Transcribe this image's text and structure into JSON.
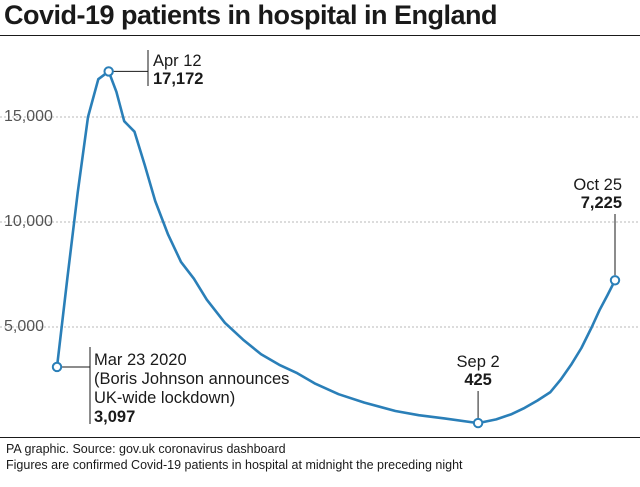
{
  "title": "Covid-19 patients in hospital in England",
  "footer": {
    "line1": "PA graphic. Source: gov.uk coronavirus dashboard",
    "line2": "Figures are confirmed Covid-19 patients in hospital at midnight the preceding night"
  },
  "colors": {
    "line": "#2a7fb8",
    "grid": "#b8b8b8",
    "text": "#1a1a1a"
  },
  "chart_data": {
    "type": "line",
    "title": "Covid-19 patients in hospital in England",
    "xlabel": "",
    "ylabel": "",
    "ylim": [
      0,
      18000
    ],
    "yticks": [
      5000,
      10000,
      15000
    ],
    "ytick_labels": [
      "5,000",
      "10,000",
      "15,000"
    ],
    "grid": true,
    "x": [
      "2020-03-23",
      "2020-03-27",
      "2020-03-31",
      "2020-04-04",
      "2020-04-08",
      "2020-04-12",
      "2020-04-15",
      "2020-04-18",
      "2020-04-22",
      "2020-04-26",
      "2020-04-30",
      "2020-05-05",
      "2020-05-10",
      "2020-05-15",
      "2020-05-20",
      "2020-05-27",
      "2020-06-03",
      "2020-06-10",
      "2020-06-17",
      "2020-06-24",
      "2020-07-01",
      "2020-07-10",
      "2020-07-20",
      "2020-08-01",
      "2020-08-10",
      "2020-08-20",
      "2020-09-02",
      "2020-09-09",
      "2020-09-15",
      "2020-09-20",
      "2020-09-25",
      "2020-09-30",
      "2020-10-04",
      "2020-10-08",
      "2020-10-12",
      "2020-10-16",
      "2020-10-19",
      "2020-10-22",
      "2020-10-25"
    ],
    "values": [
      3097,
      7300,
      11400,
      15000,
      16800,
      17172,
      16200,
      14800,
      14300,
      12700,
      11000,
      9400,
      8100,
      7300,
      6300,
      5200,
      4400,
      3700,
      3200,
      2800,
      2300,
      1800,
      1400,
      1000,
      800,
      650,
      425,
      600,
      850,
      1150,
      1500,
      1900,
      2500,
      3200,
      4000,
      5000,
      5800,
      6500,
      7225
    ],
    "series": [
      {
        "values": [
          3097,
          7300,
          11400,
          15000,
          16800,
          17172,
          16200,
          14800,
          14300,
          12700,
          11000,
          9400,
          8100,
          7300,
          6300,
          5200,
          4400,
          3700,
          3200,
          2800,
          2300,
          1800,
          1400,
          1000,
          800,
          650,
          425,
          600,
          850,
          1150,
          1500,
          1900,
          2500,
          3200,
          4000,
          5000,
          5800,
          6500,
          7225
        ]
      }
    ],
    "annotations": [
      {
        "x": "2020-03-23",
        "value": 3097,
        "lines": [
          "Mar 23 2020",
          "(Boris Johnson announces",
          "UK-wide lockdown)"
        ],
        "value_label": "3,097",
        "placement": "below-right"
      },
      {
        "x": "2020-04-12",
        "value": 17172,
        "lines": [
          "Apr 12"
        ],
        "value_label": "17,172",
        "placement": "above-right"
      },
      {
        "x": "2020-09-02",
        "value": 425,
        "lines": [
          "Sep 2"
        ],
        "value_label": "425",
        "placement": "above"
      },
      {
        "x": "2020-10-25",
        "value": 7225,
        "lines": [
          "Oct 25"
        ],
        "value_label": "7,225",
        "placement": "above"
      }
    ]
  }
}
